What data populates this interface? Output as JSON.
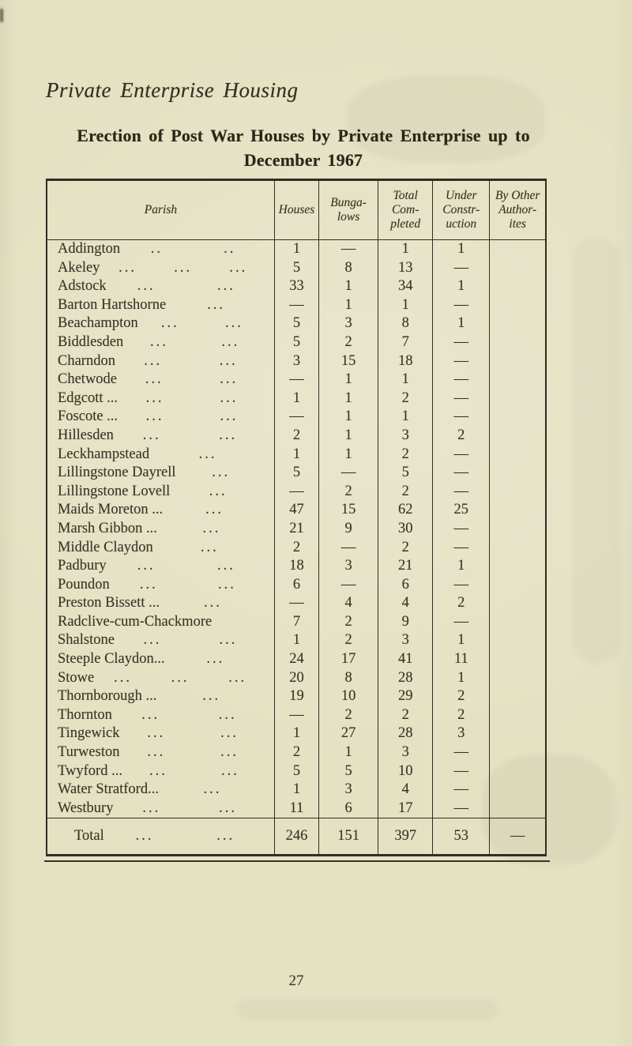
{
  "colors": {
    "paper": "#e5e1c3",
    "ink": "#3a3426",
    "heading_ink": "#2b2517",
    "rule": "#332d20"
  },
  "page": {
    "section_title": "Private Enterprise Housing",
    "heading_line1": "Erection of Post War Houses by Private Enterprise up to",
    "heading_line2": "December 1967",
    "page_number": "27"
  },
  "table": {
    "columns": [
      "Parish",
      "Houses",
      "Bunga-\nlows",
      "Total\nCom-\npleted",
      "Under\nConstr-\nuction",
      "By Other\nAuthor-\nites"
    ],
    "rows": [
      {
        "parish": "Addington",
        "dots": [
          "..",
          ".."
        ],
        "houses": "1",
        "bungalows": "—",
        "total_completed": "1",
        "under_construction": "1",
        "by_other": ""
      },
      {
        "parish": "Akeley",
        "dots": [
          "...",
          "...",
          "..."
        ],
        "houses": "5",
        "bungalows": "8",
        "total_completed": "13",
        "under_construction": "—",
        "by_other": ""
      },
      {
        "parish": "Adstock",
        "dots": [
          "...",
          "..."
        ],
        "houses": "33",
        "bungalows": "1",
        "total_completed": "34",
        "under_construction": "1",
        "by_other": ""
      },
      {
        "parish": "Barton Hartshorne",
        "dots": [
          "..."
        ],
        "houses": "—",
        "bungalows": "1",
        "total_completed": "1",
        "under_construction": "—",
        "by_other": ""
      },
      {
        "parish": "Beachampton",
        "dots": [
          "...",
          "..."
        ],
        "houses": "5",
        "bungalows": "3",
        "total_completed": "8",
        "under_construction": "1",
        "by_other": ""
      },
      {
        "parish": "Biddlesden",
        "dots": [
          "...",
          "..."
        ],
        "houses": "5",
        "bungalows": "2",
        "total_completed": "7",
        "under_construction": "—",
        "by_other": ""
      },
      {
        "parish": "Charndon",
        "dots": [
          "...",
          "..."
        ],
        "houses": "3",
        "bungalows": "15",
        "total_completed": "18",
        "under_construction": "—",
        "by_other": ""
      },
      {
        "parish": "Chetwode",
        "dots": [
          "...",
          "..."
        ],
        "houses": "—",
        "bungalows": "1",
        "total_completed": "1",
        "under_construction": "—",
        "by_other": ""
      },
      {
        "parish": "Edgcott ...",
        "dots": [
          "...",
          "..."
        ],
        "houses": "1",
        "bungalows": "1",
        "total_completed": "2",
        "under_construction": "—",
        "by_other": ""
      },
      {
        "parish": "Foscote ...",
        "dots": [
          "...",
          "..."
        ],
        "houses": "—",
        "bungalows": "1",
        "total_completed": "1",
        "under_construction": "—",
        "by_other": ""
      },
      {
        "parish": "Hillesden",
        "dots": [
          "...",
          "..."
        ],
        "houses": "2",
        "bungalows": "1",
        "total_completed": "3",
        "under_construction": "2",
        "by_other": ""
      },
      {
        "parish": "Leckhampstead",
        "dots": [
          "..."
        ],
        "houses": "1",
        "bungalows": "1",
        "total_completed": "2",
        "under_construction": "—",
        "by_other": ""
      },
      {
        "parish": "Lillingstone Dayrell",
        "dots": [
          "..."
        ],
        "houses": "5",
        "bungalows": "—",
        "total_completed": "5",
        "under_construction": "—",
        "by_other": ""
      },
      {
        "parish": "Lillingstone Lovell",
        "dots": [
          "..."
        ],
        "houses": "—",
        "bungalows": "2",
        "total_completed": "2",
        "under_construction": "—",
        "by_other": ""
      },
      {
        "parish": "Maids Moreton ...",
        "dots": [
          "..."
        ],
        "houses": "47",
        "bungalows": "15",
        "total_completed": "62",
        "under_construction": "25",
        "by_other": ""
      },
      {
        "parish": "Marsh Gibbon ...",
        "dots": [
          "..."
        ],
        "houses": "21",
        "bungalows": "9",
        "total_completed": "30",
        "under_construction": "—",
        "by_other": ""
      },
      {
        "parish": "Middle Claydon",
        "dots": [
          "..."
        ],
        "houses": "2",
        "bungalows": "—",
        "total_completed": "2",
        "under_construction": "—",
        "by_other": ""
      },
      {
        "parish": "Padbury",
        "dots": [
          "...",
          "..."
        ],
        "houses": "18",
        "bungalows": "3",
        "total_completed": "21",
        "under_construction": "1",
        "by_other": ""
      },
      {
        "parish": "Poundon",
        "dots": [
          "...",
          "..."
        ],
        "houses": "6",
        "bungalows": "—",
        "total_completed": "6",
        "under_construction": "—",
        "by_other": ""
      },
      {
        "parish": "Preston Bissett ...",
        "dots": [
          "..."
        ],
        "houses": "—",
        "bungalows": "4",
        "total_completed": "4",
        "under_construction": "2",
        "by_other": ""
      },
      {
        "parish": "Radclive-cum-Chackmore",
        "dots": [],
        "houses": "7",
        "bungalows": "2",
        "total_completed": "9",
        "under_construction": "—",
        "by_other": ""
      },
      {
        "parish": "Shalstone",
        "dots": [
          "...",
          "..."
        ],
        "houses": "1",
        "bungalows": "2",
        "total_completed": "3",
        "under_construction": "1",
        "by_other": ""
      },
      {
        "parish": "Steeple Claydon...",
        "dots": [
          "..."
        ],
        "houses": "24",
        "bungalows": "17",
        "total_completed": "41",
        "under_construction": "11",
        "by_other": ""
      },
      {
        "parish": "Stowe",
        "dots": [
          "...",
          "...",
          "..."
        ],
        "houses": "20",
        "bungalows": "8",
        "total_completed": "28",
        "under_construction": "1",
        "by_other": ""
      },
      {
        "parish": "Thornborough ...",
        "dots": [
          "..."
        ],
        "houses": "19",
        "bungalows": "10",
        "total_completed": "29",
        "under_construction": "2",
        "by_other": ""
      },
      {
        "parish": "Thornton",
        "dots": [
          "...",
          "..."
        ],
        "houses": "—",
        "bungalows": "2",
        "total_completed": "2",
        "under_construction": "2",
        "by_other": ""
      },
      {
        "parish": "Tingewick",
        "dots": [
          "...",
          "..."
        ],
        "houses": "1",
        "bungalows": "27",
        "total_completed": "28",
        "under_construction": "3",
        "by_other": ""
      },
      {
        "parish": "Turweston",
        "dots": [
          "...",
          "..."
        ],
        "houses": "2",
        "bungalows": "1",
        "total_completed": "3",
        "under_construction": "—",
        "by_other": ""
      },
      {
        "parish": "Twyford ...",
        "dots": [
          "...",
          "..."
        ],
        "houses": "5",
        "bungalows": "5",
        "total_completed": "10",
        "under_construction": "—",
        "by_other": ""
      },
      {
        "parish": "Water Stratford...",
        "dots": [
          "..."
        ],
        "houses": "1",
        "bungalows": "3",
        "total_completed": "4",
        "under_construction": "—",
        "by_other": ""
      },
      {
        "parish": "Westbury",
        "dots": [
          "...",
          "..."
        ],
        "houses": "11",
        "bungalows": "6",
        "total_completed": "17",
        "under_construction": "—",
        "by_other": ""
      }
    ],
    "total": {
      "parish": "Total",
      "dots": [
        "...",
        "..."
      ],
      "houses": "246",
      "bungalows": "151",
      "total_completed": "397",
      "under_construction": "53",
      "by_other": "—"
    }
  }
}
